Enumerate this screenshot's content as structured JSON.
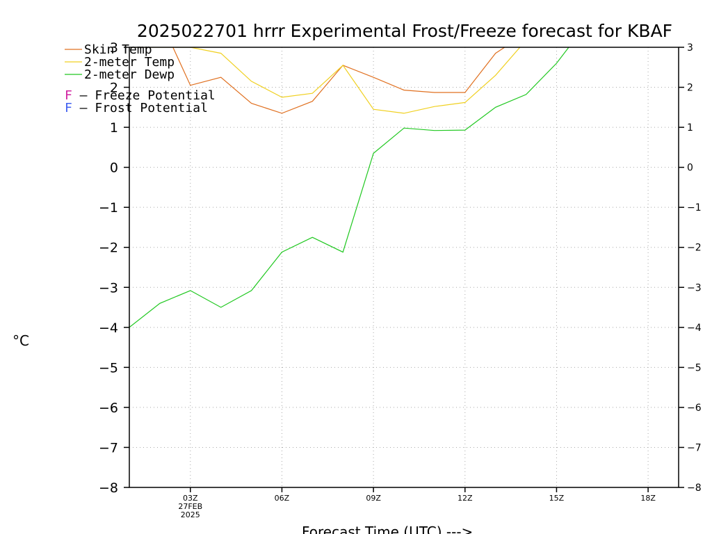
{
  "chart_data": {
    "type": "line",
    "title": "2025022701 hrrr Experimental Frost/Freeze forecast for KBAF",
    "xlabel": "Forecast Time (UTC) --->",
    "ylabel": "°C",
    "ylim": [
      -8,
      3
    ],
    "yticks": [
      3,
      2,
      1,
      0,
      -1,
      -2,
      -3,
      -4,
      -5,
      -6,
      -7,
      -8
    ],
    "yticks_right": [
      3,
      2,
      1,
      0,
      -1,
      -2,
      -3,
      -4,
      -5,
      -6,
      -7,
      -8
    ],
    "xlim": [
      1,
      19
    ],
    "xticks": [
      {
        "x": 3,
        "label": "03Z",
        "sub": [
          "27FEB",
          "2025"
        ]
      },
      {
        "x": 6,
        "label": "06Z",
        "sub": []
      },
      {
        "x": 9,
        "label": "09Z",
        "sub": []
      },
      {
        "x": 12,
        "label": "12Z",
        "sub": []
      },
      {
        "x": 15,
        "label": "15Z",
        "sub": []
      },
      {
        "x": 18,
        "label": "18Z",
        "sub": []
      }
    ],
    "grid": true,
    "legend_position": "top-left",
    "series": [
      {
        "name": "Skin Temp",
        "color": "#e07020",
        "x": [
          2.4,
          3,
          4,
          5,
          6,
          7,
          8,
          9,
          10,
          11,
          12,
          13,
          13.4
        ],
        "values": [
          3.05,
          2.05,
          2.25,
          1.6,
          1.35,
          1.65,
          2.55,
          2.25,
          1.93,
          1.87,
          1.87,
          2.85,
          3.05
        ]
      },
      {
        "name": "2-meter Temp",
        "color": "#f0d020",
        "x": [
          1,
          3,
          4,
          5,
          6,
          7,
          8,
          9,
          10,
          11,
          12,
          13,
          13.8
        ],
        "values": [
          3.0,
          3.0,
          2.85,
          2.15,
          1.75,
          1.85,
          2.55,
          1.45,
          1.35,
          1.52,
          1.62,
          2.3,
          3.0
        ]
      },
      {
        "name": "2-meter Dewp",
        "color": "#20c820",
        "x": [
          1,
          2,
          3,
          4,
          5,
          6,
          7,
          8,
          9,
          10,
          11,
          12,
          13,
          14,
          15,
          15.4
        ],
        "values": [
          -4.0,
          -3.4,
          -3.08,
          -3.5,
          -3.08,
          -2.12,
          -1.75,
          -2.12,
          0.35,
          0.98,
          0.92,
          0.93,
          1.5,
          1.82,
          2.6,
          3.0
        ]
      }
    ],
    "legend_extra": [
      {
        "letter": "F",
        "text": " – Freeze Potential",
        "color": "#d020a0"
      },
      {
        "letter": "F",
        "text": " – Frost Potential",
        "color": "#4060f0"
      }
    ]
  }
}
